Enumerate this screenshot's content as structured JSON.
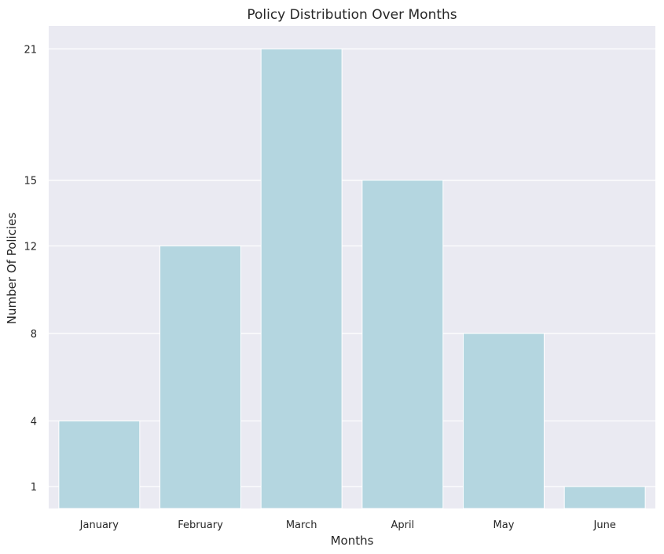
{
  "chart_data": {
    "type": "bar",
    "title": "Policy Distribution Over Months",
    "xlabel": "Months",
    "ylabel": "Number Of Policies",
    "categories": [
      "January",
      "February",
      "March",
      "April",
      "May",
      "June"
    ],
    "values": [
      4,
      12,
      21,
      15,
      8,
      1
    ],
    "yticks": [
      "1",
      "4",
      "8",
      "12",
      "15",
      "21"
    ],
    "ylim": [
      0,
      22.05
    ],
    "grid": true,
    "legend": "none"
  },
  "colors": {
    "plot_background": "#eaeaf2",
    "bar_fill": "#b4d6e0",
    "grid": "#ffffff",
    "text": "#262626"
  }
}
